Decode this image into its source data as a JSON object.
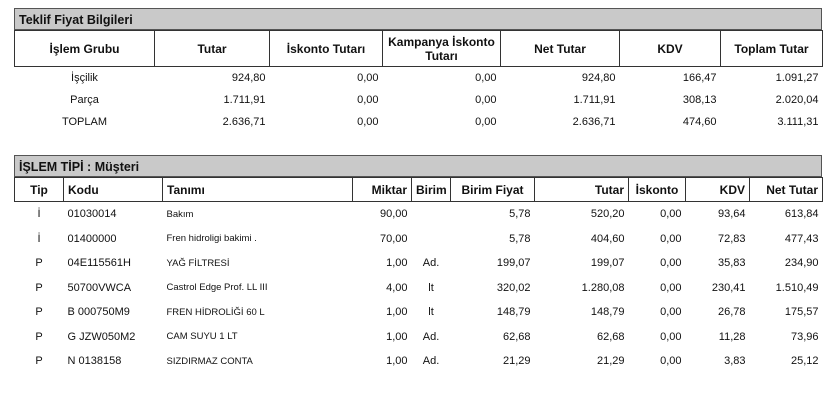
{
  "summary": {
    "title": "Teklif Fiyat Bilgileri",
    "headers": [
      "İşlem Grubu",
      "Tutar",
      "İskonto Tutarı",
      "Kampanya İskonto Tutarı",
      "Net Tutar",
      "KDV",
      "Toplam Tutar"
    ],
    "rows": [
      [
        "İşçilik",
        "924,80",
        "0,00",
        "0,00",
        "924,80",
        "166,47",
        "1.091,27"
      ],
      [
        "Parça",
        "1.711,91",
        "0,00",
        "0,00",
        "1.711,91",
        "308,13",
        "2.020,04"
      ],
      [
        "TOPLAM",
        "2.636,71",
        "0,00",
        "0,00",
        "2.636,71",
        "474,60",
        "3.111,31"
      ]
    ]
  },
  "detail": {
    "title": "İŞLEM TİPİ : Müşteri",
    "headers": [
      "Tip",
      "Kodu",
      "Tanımı",
      "Miktar",
      "Birim",
      "Birim Fiyat",
      "Tutar",
      "İskonto",
      "KDV",
      "Net Tutar"
    ],
    "rows": [
      [
        "İ",
        "01030014",
        "Bakım",
        "90,00",
        "",
        "5,78",
        "520,20",
        "0,00",
        "93,64",
        "613,84"
      ],
      [
        "İ",
        "01400000",
        "Fren hidroligi bakimi .",
        "70,00",
        "",
        "5,78",
        "404,60",
        "0,00",
        "72,83",
        "477,43"
      ],
      [
        "P",
        "04E115561H",
        "YAĞ FİLTRESİ",
        "1,00",
        "Ad.",
        "199,07",
        "199,07",
        "0,00",
        "35,83",
        "234,90"
      ],
      [
        "P",
        "50700VWCA",
        "Castrol Edge Prof. LL III",
        "4,00",
        "lt",
        "320,02",
        "1.280,08",
        "0,00",
        "230,41",
        "1.510,49"
      ],
      [
        "P",
        "B  000750M9",
        "FREN HİDROLİĞİ 60 L",
        "1,00",
        "lt",
        "148,79",
        "148,79",
        "0,00",
        "26,78",
        "175,57"
      ],
      [
        "P",
        "G  JZW050M2",
        "CAM SUYU 1 LT",
        "1,00",
        "Ad.",
        "62,68",
        "62,68",
        "0,00",
        "11,28",
        "73,96"
      ],
      [
        "P",
        "N  0138158",
        "SIZDIRMAZ CONTA",
        "1,00",
        "Ad.",
        "21,29",
        "21,29",
        "0,00",
        "3,83",
        "25,12"
      ]
    ]
  }
}
